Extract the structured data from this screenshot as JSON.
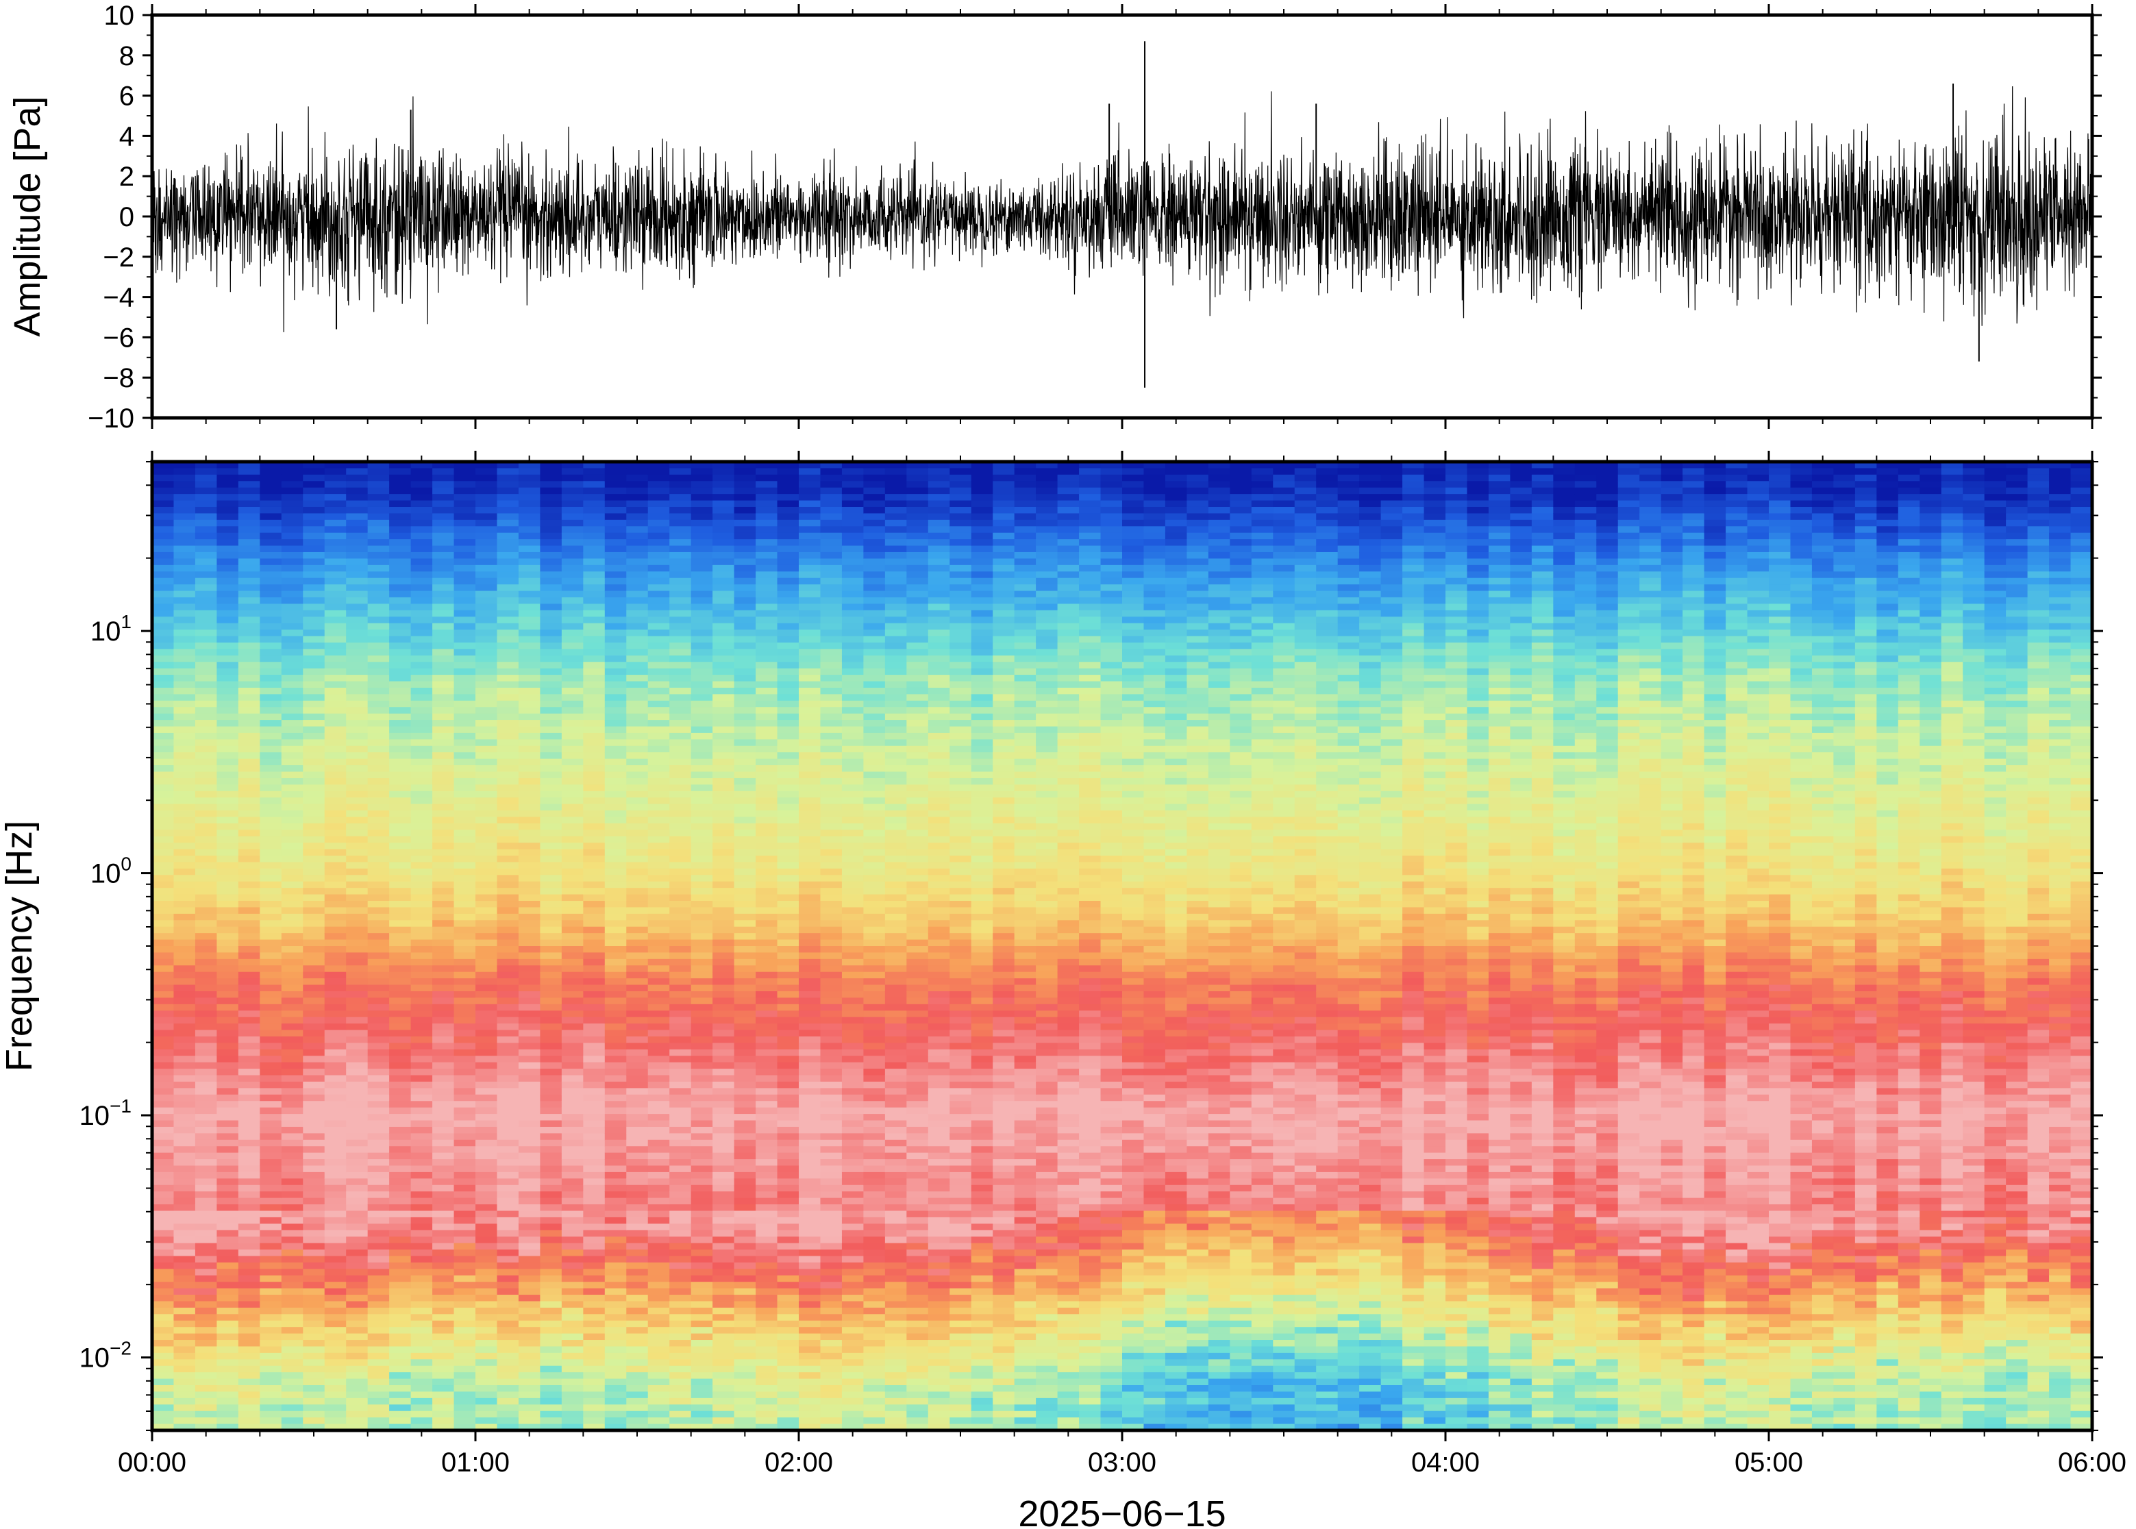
{
  "chart_data": [
    {
      "type": "line",
      "ylabel": "Amplitude [Pa]",
      "ylim": [
        -10,
        10
      ],
      "y_ticks": [
        -10,
        -8,
        -6,
        -4,
        -2,
        0,
        2,
        4,
        6,
        8,
        10
      ],
      "y_tick_labels": [
        "−10",
        "−8",
        "−6",
        "−4",
        "−2",
        "0",
        "2",
        "4",
        "6",
        "8",
        "10"
      ],
      "xlim_hours": [
        0,
        6
      ],
      "series": [
        {
          "color": "#000000",
          "envelope_x_hours": [
            0.0,
            0.25,
            0.5,
            0.75,
            1.0,
            1.25,
            1.5,
            1.75,
            2.0,
            2.25,
            2.5,
            2.75,
            3.0,
            3.25,
            3.5,
            3.75,
            4.0,
            4.25,
            4.5,
            4.75,
            5.0,
            5.25,
            5.5,
            5.75,
            6.0
          ],
          "envelope_amplitude": [
            2.4,
            2.6,
            3.0,
            3.3,
            2.8,
            2.6,
            2.5,
            2.4,
            2.2,
            1.9,
            1.6,
            1.7,
            2.6,
            2.9,
            3.0,
            3.0,
            3.3,
            3.3,
            3.1,
            2.9,
            3.0,
            3.4,
            3.6,
            4.2,
            3.2
          ],
          "notable_peaks": [
            {
              "x_hours": 0.57,
              "y": -5.6
            },
            {
              "x_hours": 0.8,
              "y": 5.3
            },
            {
              "x_hours": 2.96,
              "y": 5.6
            },
            {
              "x_hours": 3.07,
              "y": 8.7
            },
            {
              "x_hours": 3.07,
              "y": -8.5
            },
            {
              "x_hours": 3.6,
              "y": 5.6
            },
            {
              "x_hours": 5.57,
              "y": 6.6
            },
            {
              "x_hours": 5.65,
              "y": -7.2
            }
          ]
        }
      ]
    },
    {
      "type": "heatmap",
      "ylabel": "Frequency [Hz]",
      "xlabel": "2025−06−15",
      "y_scale": "log",
      "ylim": [
        0.005,
        50
      ],
      "y_ticks": [
        {
          "value": 0.01,
          "base": "10",
          "exp": "−2"
        },
        {
          "value": 0.1,
          "base": "10",
          "exp": "−1"
        },
        {
          "value": 1,
          "base": "10",
          "exp": "0"
        },
        {
          "value": 10,
          "base": "10",
          "exp": "1"
        }
      ],
      "x_ticks": [
        {
          "hours": 0,
          "label": "00:00"
        },
        {
          "hours": 1,
          "label": "01:00"
        },
        {
          "hours": 2,
          "label": "02:00"
        },
        {
          "hours": 3,
          "label": "03:00"
        },
        {
          "hours": 4,
          "label": "04:00"
        },
        {
          "hours": 5,
          "label": "05:00"
        },
        {
          "hours": 6,
          "label": "06:00"
        }
      ],
      "xlim_hours": [
        0,
        6
      ],
      "colormap": [
        "#0a1aa8",
        "#1f5ee0",
        "#3aa7ee",
        "#6ee0d6",
        "#d8f29a",
        "#f4e07a",
        "#f8a35a",
        "#f25c5c",
        "#f6b4b4"
      ],
      "power_profile_log_frequency": [
        {
          "log_f": -2.3,
          "level": 0.42
        },
        {
          "log_f": -2.1,
          "level": 0.45
        },
        {
          "log_f": -1.85,
          "level": 0.62
        },
        {
          "log_f": -1.62,
          "level": 0.8
        },
        {
          "log_f": -1.45,
          "level": 0.92
        },
        {
          "log_f": -1.0,
          "level": 1.0
        },
        {
          "log_f": -0.7,
          "level": 0.9
        },
        {
          "log_f": -0.45,
          "level": 0.82
        },
        {
          "log_f": -0.2,
          "level": 0.68
        },
        {
          "log_f": 0.0,
          "level": 0.6
        },
        {
          "log_f": 0.4,
          "level": 0.52
        },
        {
          "log_f": 0.8,
          "level": 0.43
        },
        {
          "log_f": 1.0,
          "level": 0.34
        },
        {
          "log_f": 1.3,
          "level": 0.2
        },
        {
          "log_f": 1.55,
          "level": 0.05
        },
        {
          "log_f": 1.7,
          "level": 0.0
        }
      ]
    }
  ]
}
